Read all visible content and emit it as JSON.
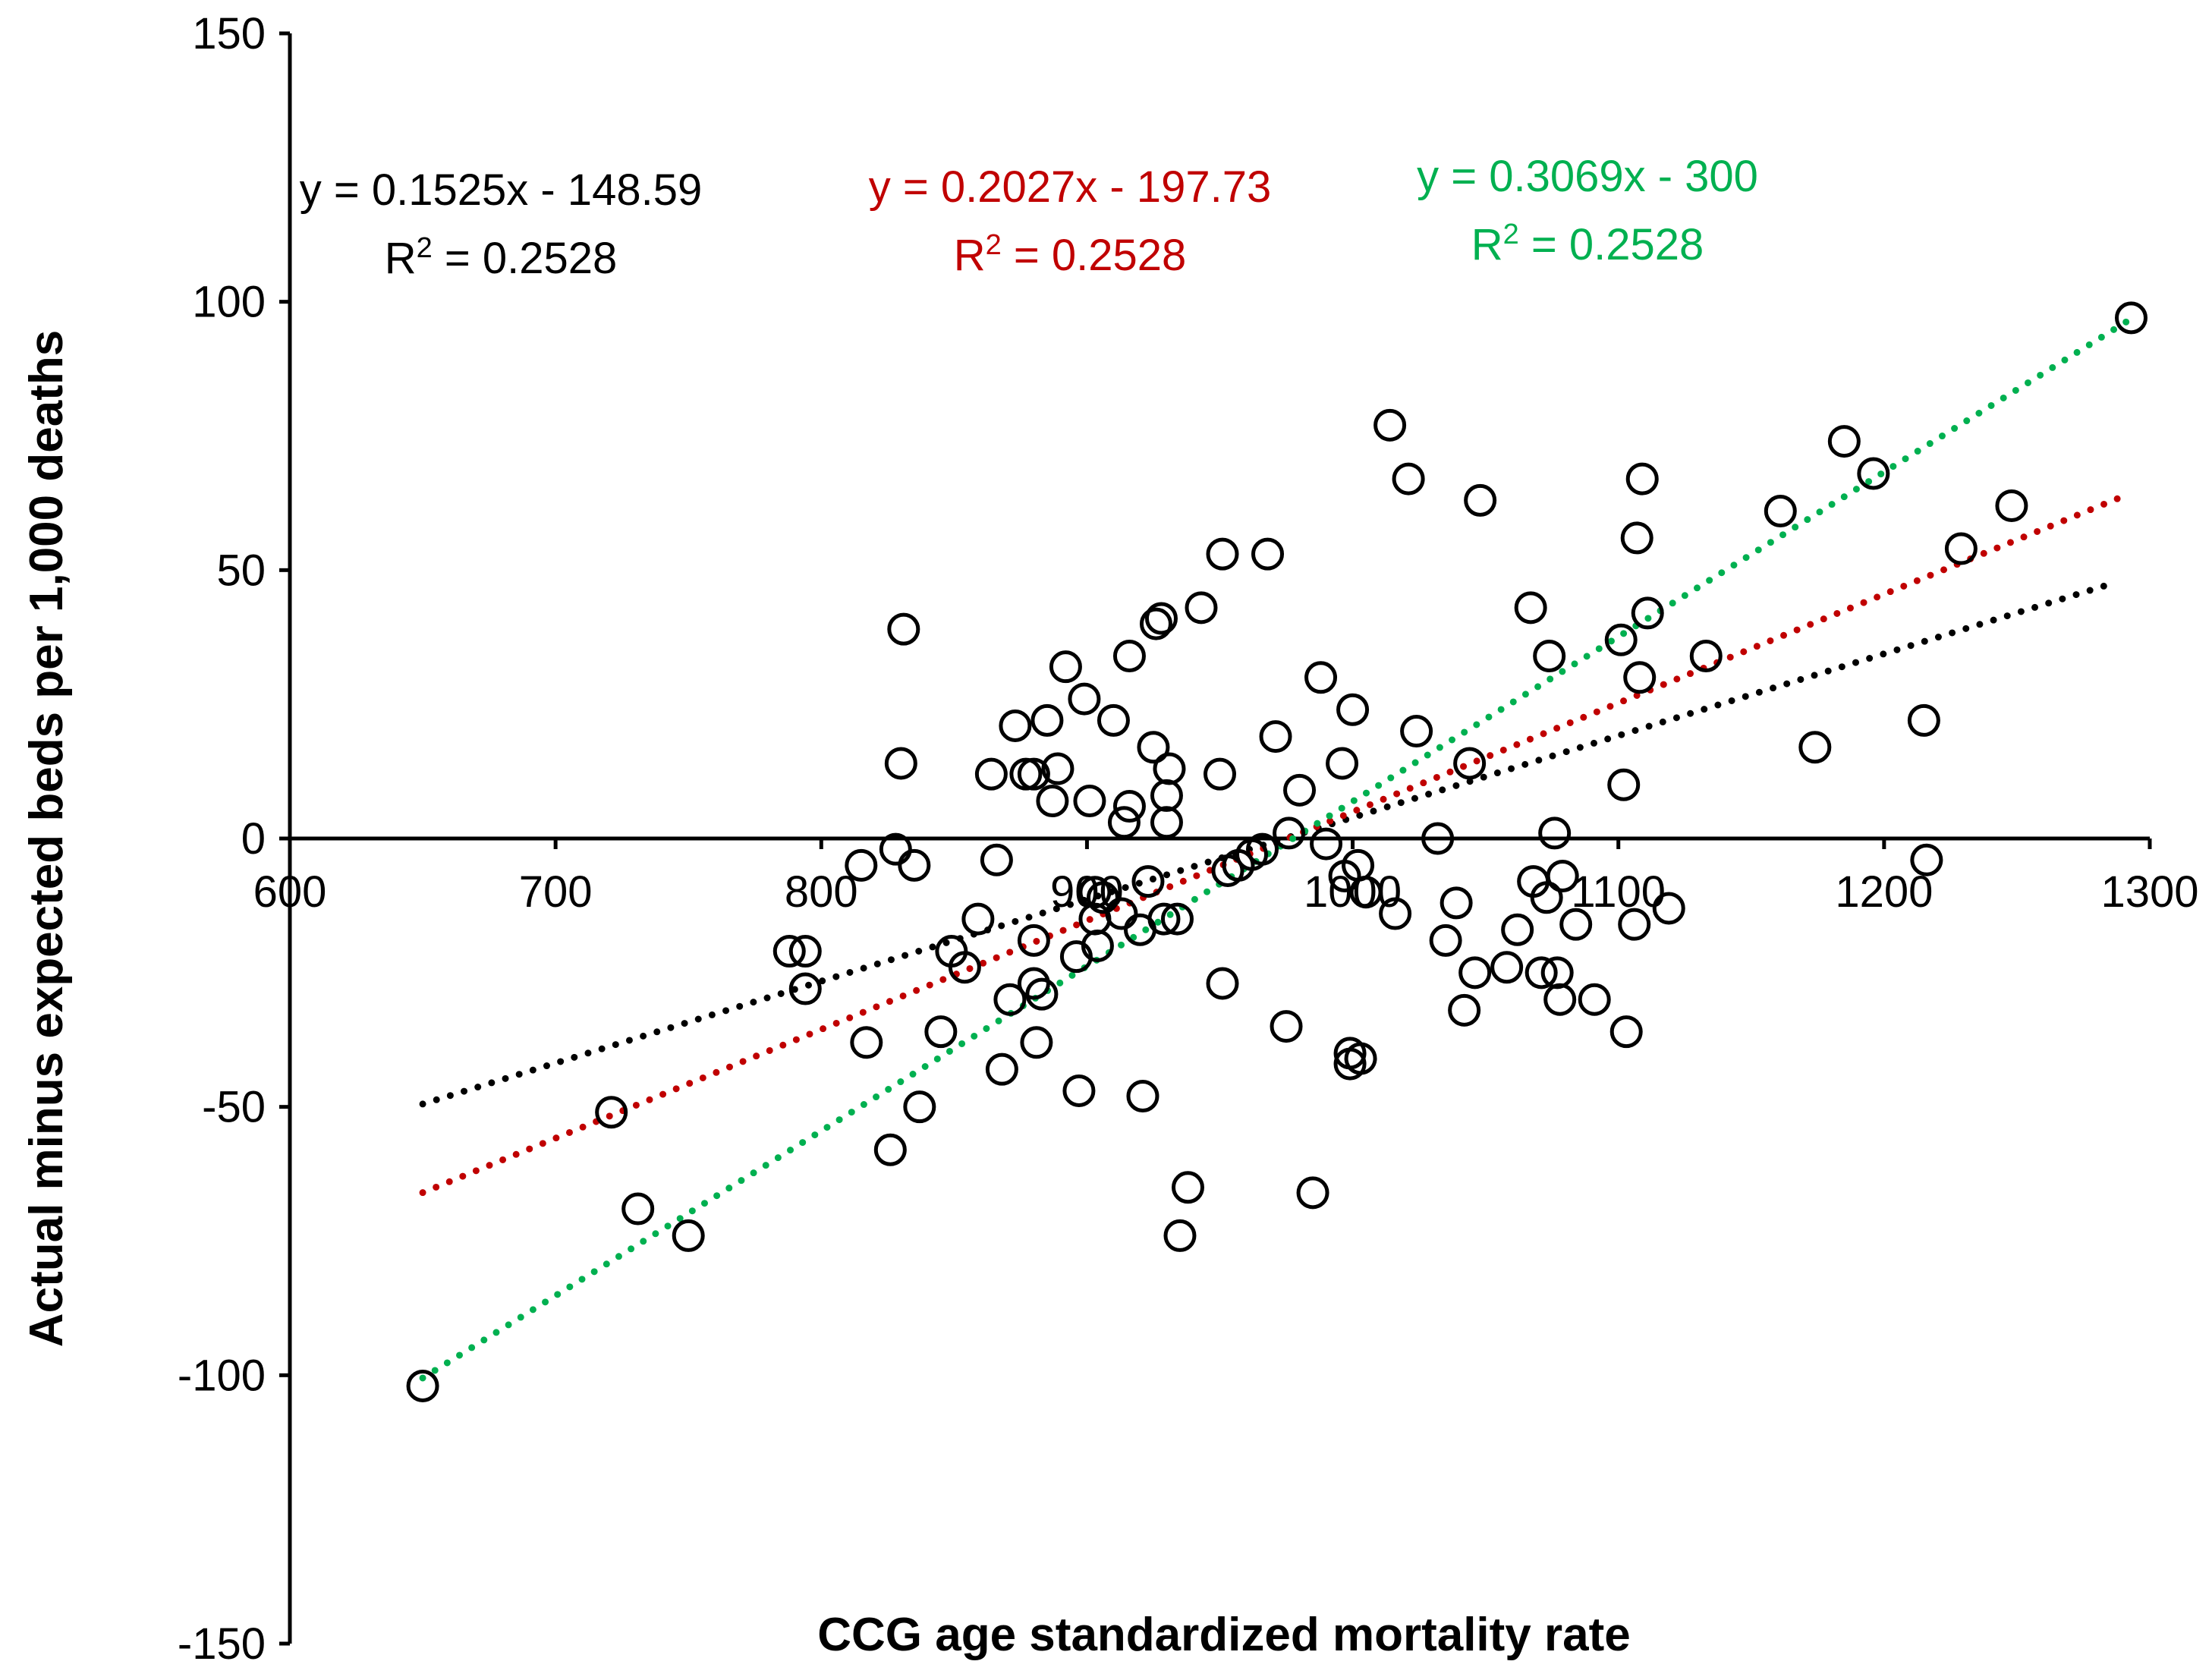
{
  "chart_data": {
    "type": "scatter",
    "xlabel": "CCG age standardized mortality rate",
    "ylabel": "Actual minus expected beds per 1,000 deaths",
    "xlim": [
      600,
      1300
    ],
    "ylim": [
      -150,
      150
    ],
    "x_ticks": [
      600,
      700,
      800,
      900,
      1000,
      1100,
      1200,
      1300
    ],
    "y_ticks": [
      150,
      100,
      50,
      0,
      -50,
      -100,
      -150
    ],
    "points": [
      [
        650,
        -102
      ],
      [
        721,
        -51
      ],
      [
        731,
        -69
      ],
      [
        750,
        -74
      ],
      [
        788,
        -21
      ],
      [
        794,
        -21
      ],
      [
        794,
        -28
      ],
      [
        815,
        -5
      ],
      [
        817,
        -38
      ],
      [
        826,
        -58
      ],
      [
        828,
        -2
      ],
      [
        830,
        14
      ],
      [
        831,
        39
      ],
      [
        835,
        -5
      ],
      [
        837,
        -50
      ],
      [
        845,
        -36
      ],
      [
        849,
        -21
      ],
      [
        854,
        -24
      ],
      [
        859,
        -15
      ],
      [
        864,
        12
      ],
      [
        866,
        -4
      ],
      [
        868,
        -43
      ],
      [
        871,
        -30
      ],
      [
        873,
        21
      ],
      [
        877,
        12
      ],
      [
        880,
        12
      ],
      [
        880,
        -19
      ],
      [
        880,
        -27
      ],
      [
        881,
        -38
      ],
      [
        883,
        -29
      ],
      [
        885,
        22
      ],
      [
        887,
        7
      ],
      [
        889,
        13
      ],
      [
        892,
        32
      ],
      [
        896,
        -22
      ],
      [
        897,
        -47
      ],
      [
        899,
        26
      ],
      [
        901,
        7
      ],
      [
        903,
        -10
      ],
      [
        903,
        -15
      ],
      [
        904,
        -20
      ],
      [
        906,
        -11
      ],
      [
        910,
        22
      ],
      [
        913,
        -14
      ],
      [
        914,
        3
      ],
      [
        916,
        34
      ],
      [
        916,
        6
      ],
      [
        920,
        -17
      ],
      [
        921,
        -48
      ],
      [
        923,
        -8
      ],
      [
        925,
        17
      ],
      [
        926,
        40
      ],
      [
        928,
        41
      ],
      [
        929,
        -15
      ],
      [
        930,
        8
      ],
      [
        930,
        3
      ],
      [
        931,
        13
      ],
      [
        934,
        -15
      ],
      [
        935,
        -74
      ],
      [
        938,
        -65
      ],
      [
        943,
        43
      ],
      [
        950,
        12
      ],
      [
        951,
        -27
      ],
      [
        951,
        53
      ],
      [
        953,
        -6
      ],
      [
        957,
        -5
      ],
      [
        962,
        -3
      ],
      [
        966,
        -2
      ],
      [
        968,
        53
      ],
      [
        971,
        19
      ],
      [
        975,
        -35
      ],
      [
        976,
        1
      ],
      [
        980,
        9
      ],
      [
        985,
        -66
      ],
      [
        988,
        30
      ],
      [
        990,
        -1
      ],
      [
        996,
        14
      ],
      [
        997,
        -7
      ],
      [
        999,
        -40
      ],
      [
        999,
        -42
      ],
      [
        1000,
        24
      ],
      [
        1002,
        -5
      ],
      [
        1003,
        -41
      ],
      [
        1005,
        -10
      ],
      [
        1014,
        77
      ],
      [
        1016,
        -14
      ],
      [
        1021,
        67
      ],
      [
        1024,
        20
      ],
      [
        1032,
        0
      ],
      [
        1035,
        -19
      ],
      [
        1039,
        -12
      ],
      [
        1042,
        -32
      ],
      [
        1044,
        14
      ],
      [
        1046,
        -25
      ],
      [
        1048,
        63
      ],
      [
        1058,
        -24
      ],
      [
        1062,
        -17
      ],
      [
        1067,
        43
      ],
      [
        1068,
        -8
      ],
      [
        1071,
        -25
      ],
      [
        1073,
        -11
      ],
      [
        1074,
        34
      ],
      [
        1076,
        1
      ],
      [
        1077,
        -25
      ],
      [
        1078,
        -30
      ],
      [
        1079,
        -7
      ],
      [
        1084,
        -16
      ],
      [
        1091,
        -30
      ],
      [
        1101,
        37
      ],
      [
        1102,
        10
      ],
      [
        1103,
        -36
      ],
      [
        1106,
        -16
      ],
      [
        1107,
        56
      ],
      [
        1108,
        30
      ],
      [
        1109,
        67
      ],
      [
        1111,
        42
      ],
      [
        1119,
        -13
      ],
      [
        1133,
        34
      ],
      [
        1161,
        61
      ],
      [
        1174,
        17
      ],
      [
        1185,
        74
      ],
      [
        1196,
        68
      ],
      [
        1215,
        22
      ],
      [
        1216,
        -4
      ],
      [
        1229,
        54
      ],
      [
        1248,
        62
      ],
      [
        1293,
        97
      ]
    ],
    "trendlines": [
      {
        "name": "trend-black",
        "color": "#000000",
        "slope": 0.1525,
        "intercept": -148.59,
        "x_range": [
          650,
          1285
        ],
        "equation": "y = 0.1525x - 148.59",
        "r2_prefix": "R",
        "r2_sup": "2",
        "r2_value": " = 0.2528"
      },
      {
        "name": "trend-red",
        "color": "#c00000",
        "slope": 0.2027,
        "intercept": -197.73,
        "x_range": [
          650,
          1290
        ],
        "equation": "y = 0.2027x - 197.73",
        "r2_prefix": "R",
        "r2_sup": "2",
        "r2_value": " = 0.2528"
      },
      {
        "name": "trend-green",
        "color": "#00b050",
        "slope": 0.3069,
        "intercept": -300,
        "x_range": [
          650,
          1292
        ],
        "equation": "y = 0.3069x - 300",
        "r2_prefix": "R",
        "r2_sup": "2",
        "r2_value": " = 0.2528"
      }
    ]
  }
}
